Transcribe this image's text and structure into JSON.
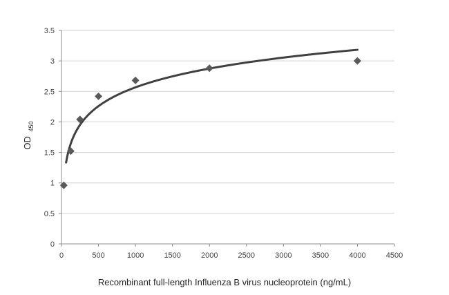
{
  "chart_data": {
    "type": "scatter",
    "xlabel": "Recombinant full-length Influenza B virus nucleoprotein  (ng/mL)",
    "ylabel": {
      "main": "OD",
      "subscript": "450"
    },
    "xlim": [
      0,
      4500
    ],
    "ylim": [
      0,
      3.5
    ],
    "x_ticks": [
      0,
      500,
      1000,
      1500,
      2000,
      2500,
      3000,
      3500,
      4000,
      4500
    ],
    "y_ticks": [
      0,
      0.5,
      1,
      1.5,
      2,
      2.5,
      3,
      3.5
    ],
    "x_tick_labels": [
      "0",
      "500",
      "1000",
      "1500",
      "2000",
      "2500",
      "3000",
      "3500",
      "4000",
      "4500"
    ],
    "y_tick_labels": [
      "0",
      "0.5",
      "1",
      "1.5",
      "2",
      "2.5",
      "3",
      "3.5"
    ],
    "grid": "horizontal",
    "legend": "none",
    "series": [
      {
        "marker": "diamond",
        "points": [
          {
            "x": 31.25,
            "y": 0.96
          },
          {
            "x": 125,
            "y": 1.52
          },
          {
            "x": 250,
            "y": 2.04
          },
          {
            "x": 500,
            "y": 2.42
          },
          {
            "x": 1000,
            "y": 2.68
          },
          {
            "x": 2000,
            "y": 2.88
          },
          {
            "x": 4000,
            "y": 3.0
          }
        ]
      }
    ],
    "trendline": {
      "type": "logarithmic",
      "x_start": 62.5,
      "x_end": 4000
    },
    "colors": {
      "marker": "#595959",
      "trendline": "#404040",
      "grid": "#d0d0d0",
      "axis": "#8c8c8c"
    }
  }
}
